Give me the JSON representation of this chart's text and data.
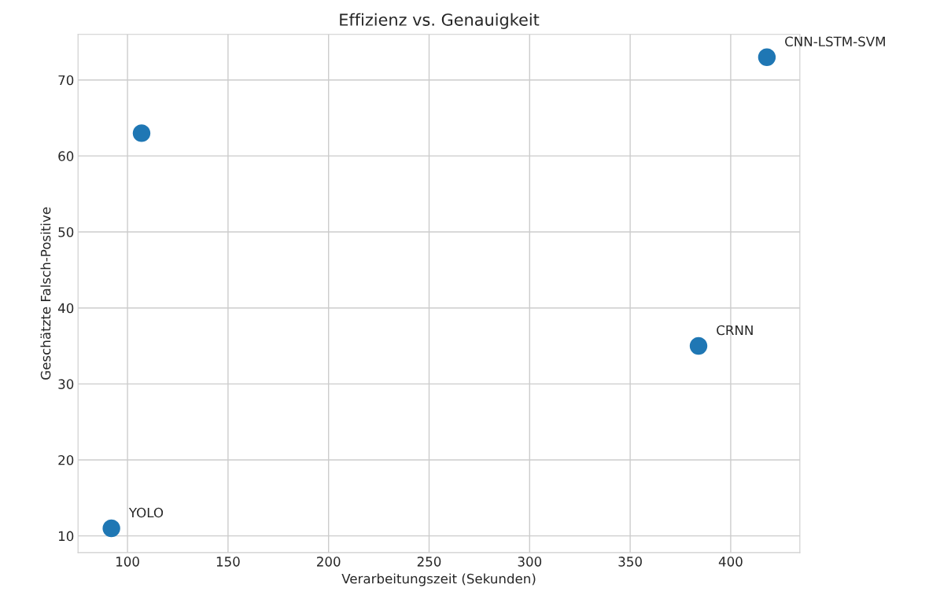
{
  "chart_data": {
    "type": "scatter",
    "title": "Effizienz vs. Genauigkeit",
    "xlabel": "Verarbeitungszeit (Sekunden)",
    "ylabel": "Geschätzte Falsch-Positive",
    "series": [
      {
        "color": "#1f77b4",
        "x": [
          92,
          107,
          384,
          418
        ],
        "values": [
          11,
          63,
          35,
          73
        ]
      }
    ],
    "annotations": [
      {
        "text": "YOLO",
        "x": 92,
        "y": 11
      },
      {
        "text": "CRNN",
        "x": 384,
        "y": 35
      },
      {
        "text": "CNN-LSTM-SVM",
        "x": 418,
        "y": 73
      }
    ],
    "xlim": [
      75.4,
      434.4
    ],
    "ylim": [
      7.8,
      76
    ],
    "xticks": [
      100,
      150,
      200,
      250,
      300,
      350,
      400
    ],
    "yticks": [
      10,
      20,
      30,
      40,
      50,
      60,
      70
    ],
    "grid": true,
    "marker": "circle"
  }
}
